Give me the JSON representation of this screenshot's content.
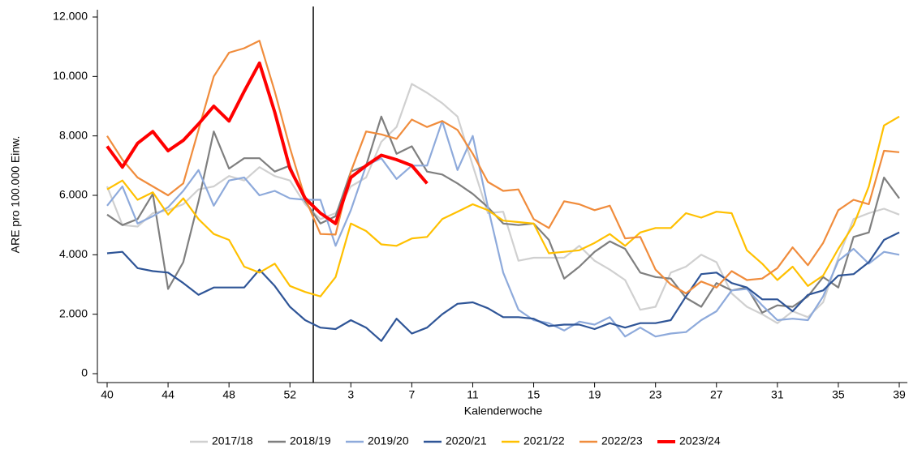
{
  "chart_data": {
    "type": "line",
    "y_label": "ARE pro 100.000 Einw.",
    "x_label": "Kalenderwoche",
    "categories": [
      "40",
      null,
      null,
      null,
      "44",
      null,
      null,
      null,
      "48",
      null,
      null,
      null,
      "52",
      null,
      null,
      null,
      "3",
      null,
      null,
      null,
      "7",
      null,
      null,
      null,
      "11",
      null,
      null,
      null,
      "15",
      null,
      null,
      null,
      "19",
      null,
      null,
      null,
      "23",
      null,
      null,
      null,
      "27",
      null,
      null,
      null,
      "31",
      null,
      null,
      null,
      "35",
      null,
      null,
      null,
      "39"
    ],
    "ylim": [
      0,
      12000
    ],
    "yticks": [
      0,
      {
        "value": 2000,
        "label": "2.000"
      },
      {
        "value": 4000,
        "label": "4.000"
      },
      {
        "value": 6000,
        "label": "6.000"
      },
      {
        "value": 8000,
        "label": "8.000"
      },
      {
        "value": 10000,
        "label": "10.000"
      },
      {
        "value": 12000,
        "label": "12.000"
      }
    ],
    "grid": false,
    "legend": "bottom",
    "series": [
      {
        "name": "2017/18",
        "color": "#d0d0d0",
        "values": [
          6300,
          5000,
          4950,
          5400,
          5500,
          5700,
          6200,
          6300,
          6650,
          6500,
          6950,
          6650,
          6500,
          5700,
          5200,
          5400,
          6300,
          6600,
          7800,
          8300,
          9750,
          9450,
          9100,
          8650,
          7000,
          5400,
          5450,
          3800,
          3900,
          3900,
          3900,
          4300,
          3800,
          3500,
          3150,
          2150,
          2250,
          3400,
          3600,
          4000,
          3750,
          2700,
          2250,
          2000,
          1700,
          2100,
          1900,
          2400,
          3900,
          5200,
          5400,
          5550,
          5350
        ]
      },
      {
        "name": "2018/19",
        "color": "#7f7f7f",
        "values": [
          5350,
          5000,
          5200,
          6050,
          2850,
          3750,
          5800,
          8150,
          6900,
          7250,
          7250,
          6800,
          7000,
          5800,
          5050,
          5300,
          6800,
          7000,
          8650,
          7400,
          7650,
          6800,
          6700,
          6400,
          6050,
          5600,
          5050,
          5000,
          5050,
          4500,
          3200,
          3600,
          4100,
          4450,
          4200,
          3400,
          3250,
          3200,
          2550,
          2250,
          3050,
          2800,
          2900,
          2050,
          2300,
          2250,
          2600,
          3250,
          2900,
          4600,
          4750,
          6600,
          5900
        ]
      },
      {
        "name": "2019/20",
        "color": "#8eaadb",
        "values": [
          5650,
          6300,
          5050,
          5300,
          5600,
          6150,
          6850,
          5650,
          6500,
          6600,
          6000,
          6150,
          5900,
          5850,
          5850,
          4300,
          5500,
          7000,
          7250,
          6550,
          7000,
          7000,
          8500,
          6850,
          8000,
          5600,
          3400,
          2150,
          1800,
          1700,
          1450,
          1750,
          1650,
          1900,
          1250,
          1550,
          1250,
          1350,
          1400,
          1800,
          2100,
          2800,
          2850,
          2300,
          1800,
          1850,
          1800,
          2600,
          3800,
          4200,
          3700,
          4100,
          4000
        ]
      },
      {
        "name": "2020/21",
        "color": "#2f5597",
        "values": [
          4050,
          4100,
          3550,
          3450,
          3400,
          3050,
          2650,
          2900,
          2900,
          2900,
          3500,
          2950,
          2250,
          1800,
          1550,
          1500,
          1800,
          1550,
          1100,
          1850,
          1350,
          1550,
          2000,
          2350,
          2400,
          2200,
          1900,
          1900,
          1850,
          1600,
          1650,
          1650,
          1500,
          1700,
          1550,
          1700,
          1700,
          1800,
          2600,
          3350,
          3400,
          3050,
          2900,
          2500,
          2500,
          2100,
          2650,
          2800,
          3300,
          3350,
          3750,
          4500,
          4750
        ]
      },
      {
        "name": "2021/22",
        "color": "#ffc000",
        "values": [
          6200,
          6500,
          5850,
          6100,
          5350,
          5900,
          5200,
          4700,
          4500,
          3600,
          3400,
          3700,
          2950,
          2750,
          2600,
          3250,
          5050,
          4800,
          4350,
          4300,
          4550,
          4600,
          5200,
          5450,
          5700,
          5500,
          5150,
          5100,
          5050,
          4050,
          4100,
          4150,
          4400,
          4700,
          4300,
          4750,
          4900,
          4900,
          5400,
          5250,
          5450,
          5400,
          4150,
          3700,
          3150,
          3600,
          2950,
          3300,
          4200,
          5000,
          6300,
          8350,
          8650
        ]
      },
      {
        "name": "2022/23",
        "color": "#f08c3c",
        "values": [
          8000,
          7200,
          6600,
          6300,
          6000,
          6400,
          8200,
          10000,
          10800,
          10950,
          11200,
          9500,
          7600,
          5900,
          4700,
          4680,
          6800,
          8150,
          8050,
          7900,
          8550,
          8300,
          8500,
          8200,
          7400,
          6450,
          6150,
          6200,
          5200,
          4900,
          5800,
          5700,
          5500,
          5650,
          4550,
          4600,
          3500,
          3000,
          2700,
          3100,
          2900,
          3450,
          3150,
          3200,
          3550,
          4250,
          3650,
          4400,
          5500,
          5850,
          5700,
          7500,
          7450
        ]
      },
      {
        "name": "2023/24",
        "color": "#ff0000",
        "values": [
          7650,
          6950,
          7750,
          8150,
          7500,
          7850,
          8400,
          9000,
          8500,
          9500,
          10450,
          8800,
          6900,
          5900,
          5400,
          5050,
          6600,
          7000,
          7350,
          7200,
          7000,
          6400,
          null,
          null,
          null,
          null,
          null,
          null,
          null,
          null,
          null,
          null,
          null,
          null,
          null,
          null,
          null,
          null,
          null,
          null,
          null,
          null,
          null,
          null,
          null,
          null,
          null,
          null,
          null,
          null,
          null,
          null,
          null
        ]
      }
    ]
  }
}
